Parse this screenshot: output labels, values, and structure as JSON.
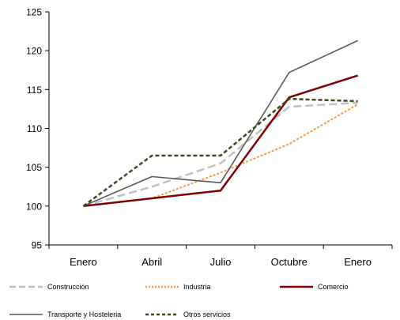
{
  "chart_data": {
    "type": "line",
    "categories": [
      "Enero",
      "Abril",
      "Julio",
      "Octubre",
      "Enero"
    ],
    "ylim": [
      95,
      125
    ],
    "yticks": [
      95,
      100,
      105,
      110,
      115,
      120,
      125
    ],
    "grid": false,
    "legend_position": "bottom",
    "series": [
      {
        "name": "Construcción",
        "values": [
          100,
          102.5,
          105.5,
          112.8,
          113.3
        ],
        "color": "#c0c0c0",
        "style": "dashed"
      },
      {
        "name": "Industria",
        "values": [
          100,
          101,
          104.3,
          108,
          113.1
        ],
        "color": "#f79646",
        "style": "dotted"
      },
      {
        "name": "Comercio",
        "values": [
          100,
          101,
          102,
          114,
          116.8
        ],
        "color": "#7f0000",
        "style": "solid"
      },
      {
        "name": "Transporte  y Hosteleria",
        "values": [
          100,
          103.8,
          103,
          117.2,
          121.3
        ],
        "color": "#595959",
        "style": "solid"
      },
      {
        "name": "Otros servicios",
        "values": [
          100,
          106.5,
          106.5,
          113.8,
          113.5
        ],
        "color": "#3a4a1f",
        "style": "dashed"
      }
    ]
  }
}
